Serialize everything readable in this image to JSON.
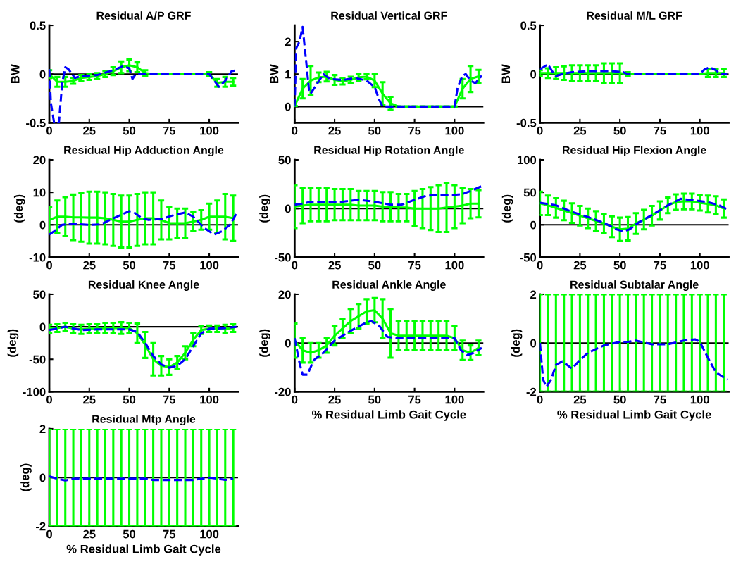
{
  "chart_data": [
    {
      "type": "line",
      "title": "Residual A/P GRF",
      "ylabel": "BW",
      "xlim": [
        0,
        118
      ],
      "xticks": [
        0,
        25,
        50,
        75,
        100
      ],
      "ylim": [
        -0.5,
        0.5
      ],
      "yticks": [
        -0.5,
        0,
        0.5
      ],
      "grid": false,
      "x": [
        0,
        5,
        10,
        15,
        20,
        25,
        30,
        35,
        40,
        45,
        50,
        55,
        60,
        65,
        70,
        75,
        80,
        85,
        90,
        95,
        100,
        105,
        110,
        115
      ],
      "ref_lines": [
        {
          "axis": "y",
          "value": 0,
          "color": "#000000"
        }
      ],
      "series": [
        {
          "color": "#00ff00",
          "line_style": "solid",
          "values": [
            0.0,
            -0.08,
            -0.08,
            -0.07,
            -0.04,
            -0.03,
            -0.02,
            0.0,
            0.03,
            0.07,
            0.09,
            0.07,
            0.01,
            0,
            0,
            0,
            0,
            0,
            0,
            0,
            0,
            -0.09,
            -0.08,
            -0.08
          ],
          "errors": [
            0.04,
            0.05,
            0.05,
            0.03,
            0.03,
            0.03,
            0.03,
            0.03,
            0.04,
            0.06,
            0.06,
            0.05,
            0.03,
            0,
            0,
            0,
            0,
            0,
            0,
            0,
            0.02,
            0.04,
            0.05,
            0.04
          ]
        },
        {
          "color": "#0000ff",
          "line_style": "dashed",
          "x": [
            0,
            1,
            3,
            6,
            8,
            10,
            12,
            16,
            20,
            30,
            40,
            46,
            50,
            52,
            54,
            60,
            100,
            106,
            110,
            114,
            117
          ],
          "values": [
            0.05,
            -0.3,
            -0.5,
            -0.5,
            -0.1,
            0.07,
            0.05,
            -0.04,
            -0.02,
            -0.01,
            0.04,
            0.08,
            0.06,
            -0.05,
            0.0,
            0.0,
            0.0,
            -0.13,
            -0.07,
            0.03,
            0.04
          ]
        }
      ]
    },
    {
      "type": "line",
      "title": "Residual Vertical GRF",
      "ylabel": "BW",
      "xlim": [
        0,
        118
      ],
      "xticks": [
        0,
        25,
        50,
        75,
        100
      ],
      "ylim": [
        -0.5,
        2.5
      ],
      "yticks": [
        0,
        1,
        2
      ],
      "grid": false,
      "x": [
        0,
        5,
        10,
        15,
        20,
        25,
        30,
        35,
        40,
        45,
        50,
        55,
        60,
        65,
        70,
        75,
        80,
        85,
        90,
        95,
        100,
        105,
        110,
        115
      ],
      "ref_lines": [
        {
          "axis": "y",
          "value": 0,
          "color": "#000000"
        }
      ],
      "series": [
        {
          "color": "#00ff00",
          "line_style": "solid",
          "values": [
            0.02,
            0.55,
            0.8,
            0.9,
            0.92,
            0.82,
            0.78,
            0.82,
            0.9,
            0.92,
            0.8,
            0.4,
            0.1,
            0,
            0,
            0,
            0,
            0,
            0,
            0,
            0,
            0.55,
            0.85,
            0.93
          ],
          "errors": [
            0,
            0.3,
            0.45,
            0.15,
            0.15,
            0.15,
            0.1,
            0.1,
            0.1,
            0.08,
            0.2,
            0.35,
            0.2,
            0,
            0,
            0,
            0,
            0,
            0,
            0,
            0,
            0.3,
            0.4,
            0.2
          ]
        },
        {
          "color": "#0000ff",
          "line_style": "dashed",
          "x": [
            0,
            1,
            3,
            5,
            7,
            9,
            10,
            14,
            18,
            22,
            30,
            38,
            45,
            50,
            53,
            55,
            100,
            102,
            105,
            107,
            110,
            113,
            117
          ],
          "values": [
            0,
            1.8,
            2.0,
            2.45,
            1.5,
            0.5,
            0.4,
            0.7,
            1.0,
            0.85,
            0.82,
            0.88,
            0.8,
            0.6,
            0.2,
            0,
            0,
            0.6,
            0.95,
            1.0,
            0.8,
            0.72,
            0.95
          ]
        }
      ]
    },
    {
      "type": "line",
      "title": "Residual M/L GRF",
      "ylabel": "BW",
      "xlim": [
        0,
        118
      ],
      "xticks": [
        0,
        25,
        50,
        75,
        100
      ],
      "ylim": [
        -0.5,
        0.5
      ],
      "yticks": [
        -0.5,
        0,
        0.5
      ],
      "grid": false,
      "x": [
        0,
        5,
        10,
        15,
        20,
        25,
        30,
        35,
        40,
        45,
        50,
        55,
        60,
        65,
        70,
        75,
        80,
        85,
        90,
        95,
        100,
        105,
        110,
        115
      ],
      "ref_lines": [
        {
          "axis": "y",
          "value": 0,
          "color": "#000000"
        }
      ],
      "series": [
        {
          "color": "#00ff00",
          "line_style": "solid",
          "values": [
            0.01,
            0.01,
            0.01,
            0.01,
            0.01,
            0.01,
            0.01,
            0.01,
            0.01,
            0.01,
            0.01,
            0.0,
            0,
            0,
            0,
            0,
            0,
            0,
            0,
            0,
            0,
            0.01,
            0.01,
            0.01
          ],
          "errors": [
            0.03,
            0.05,
            0.06,
            0.07,
            0.08,
            0.08,
            0.08,
            0.08,
            0.1,
            0.1,
            0.1,
            0.02,
            0,
            0,
            0,
            0,
            0,
            0,
            0,
            0,
            0,
            0.04,
            0.04,
            0.04
          ]
        },
        {
          "color": "#0000ff",
          "line_style": "dashed",
          "x": [
            0,
            5,
            8,
            10,
            14,
            20,
            30,
            45,
            52,
            55,
            100,
            103,
            106,
            110,
            113,
            117
          ],
          "values": [
            0.05,
            0.1,
            0.02,
            -0.02,
            0.0,
            0.02,
            0.03,
            0.03,
            0.02,
            0.0,
            0,
            0.05,
            0.07,
            0.04,
            0.0,
            0.0
          ]
        }
      ]
    },
    {
      "type": "line",
      "title": "Residual Hip Adduction Angle",
      "ylabel": "(deg)",
      "xlim": [
        0,
        118
      ],
      "xticks": [
        0,
        25,
        50,
        75,
        100
      ],
      "ylim": [
        -10,
        20
      ],
      "yticks": [
        -10,
        0,
        10,
        20
      ],
      "grid": false,
      "x": [
        0,
        5,
        10,
        15,
        20,
        25,
        30,
        35,
        40,
        45,
        50,
        55,
        60,
        65,
        70,
        75,
        80,
        85,
        90,
        95,
        100,
        105,
        110,
        115
      ],
      "ref_lines": [
        {
          "axis": "y",
          "value": 0,
          "color": "#000000"
        }
      ],
      "series": [
        {
          "color": "#00ff00",
          "line_style": "solid",
          "values": [
            1.5,
            2.5,
            2.5,
            2.3,
            2.3,
            2.2,
            2.2,
            2,
            1.5,
            1,
            1,
            1.5,
            2,
            2,
            1.5,
            0.5,
            0.5,
            0.5,
            1,
            1.5,
            2.5,
            2.5,
            2.5,
            2
          ],
          "errors": [
            4,
            5,
            6,
            7,
            7.5,
            8,
            8,
            8,
            8,
            8,
            8,
            8,
            8,
            8,
            6,
            5,
            4.5,
            4.5,
            3,
            3,
            4,
            5,
            7,
            7
          ]
        },
        {
          "color": "#0000ff",
          "line_style": "dashed",
          "x": [
            0,
            3,
            8,
            15,
            25,
            32,
            40,
            50,
            53,
            58,
            62,
            70,
            78,
            85,
            90,
            97,
            103,
            108,
            113,
            117
          ],
          "values": [
            -3,
            -2,
            0,
            0.3,
            0,
            0.1,
            2,
            4.2,
            3.8,
            2,
            1.5,
            1.8,
            3,
            3.8,
            2.5,
            -1,
            -3,
            -2,
            0,
            3.5
          ]
        }
      ]
    },
    {
      "type": "line",
      "title": "Residual Hip Rotation Angle",
      "ylabel": "(deg)",
      "xlim": [
        0,
        118
      ],
      "xticks": [
        0,
        25,
        50,
        75,
        100
      ],
      "ylim": [
        -50,
        50
      ],
      "yticks": [
        -50,
        0,
        50
      ],
      "grid": false,
      "x": [
        0,
        5,
        10,
        15,
        20,
        25,
        30,
        35,
        40,
        45,
        50,
        55,
        60,
        65,
        70,
        75,
        80,
        85,
        90,
        95,
        100,
        105,
        110,
        115
      ],
      "ref_lines": [
        {
          "axis": "y",
          "value": 0,
          "color": "#000000"
        }
      ],
      "series": [
        {
          "color": "#00ff00",
          "line_style": "solid",
          "values": [
            2,
            3,
            4,
            4,
            4,
            4,
            4,
            4,
            3,
            3,
            3,
            2,
            2,
            1,
            1,
            0,
            0,
            0,
            0,
            1,
            2,
            3,
            5,
            5
          ],
          "errors": [
            22,
            18,
            17,
            17,
            17,
            16,
            16,
            16,
            15,
            15,
            15,
            15,
            15,
            14,
            14,
            18,
            20,
            22,
            24,
            25,
            22,
            18,
            15,
            14
          ]
        },
        {
          "color": "#0000ff",
          "line_style": "dashed",
          "x": [
            0,
            5,
            10,
            20,
            30,
            40,
            50,
            60,
            67,
            75,
            82,
            90,
            100,
            105,
            110,
            117
          ],
          "values": [
            4,
            5,
            7,
            7,
            7,
            9,
            7,
            4,
            4,
            9,
            13,
            14,
            14,
            15,
            18,
            23
          ]
        }
      ]
    },
    {
      "type": "line",
      "title": "Residual Hip Flexion Angle",
      "ylabel": "(deg)",
      "xlim": [
        0,
        118
      ],
      "xticks": [
        0,
        25,
        50,
        75,
        100
      ],
      "ylim": [
        -50,
        100
      ],
      "yticks": [
        -50,
        0,
        50,
        100
      ],
      "grid": false,
      "x": [
        0,
        5,
        10,
        15,
        20,
        25,
        30,
        35,
        40,
        45,
        50,
        55,
        60,
        65,
        70,
        75,
        80,
        85,
        90,
        95,
        100,
        105,
        110,
        115
      ],
      "ref_lines": [
        {
          "axis": "y",
          "value": 0,
          "color": "#000000"
        }
      ],
      "series": [
        {
          "color": "#00ff00",
          "line_style": "solid",
          "values": [
            33,
            30,
            26,
            22,
            18,
            14,
            10,
            6,
            2,
            -3,
            -7,
            -6,
            2,
            8,
            14,
            22,
            30,
            35,
            36,
            36,
            34,
            32,
            30,
            25
          ],
          "errors": [
            18,
            15,
            15,
            15,
            15,
            15,
            15,
            15,
            15,
            16,
            18,
            18,
            16,
            15,
            15,
            14,
            12,
            12,
            12,
            12,
            12,
            13,
            14,
            14
          ]
        },
        {
          "color": "#0000ff",
          "line_style": "dashed",
          "x": [
            0,
            10,
            20,
            30,
            40,
            48,
            52,
            56,
            62,
            70,
            80,
            88,
            95,
            105,
            112,
            117
          ],
          "values": [
            34,
            30,
            20,
            12,
            3,
            -7,
            -10,
            -7,
            4,
            15,
            30,
            40,
            38,
            35,
            30,
            24
          ]
        }
      ]
    },
    {
      "type": "line",
      "title": "Residual Knee Angle",
      "ylabel": "(deg)",
      "xlim": [
        0,
        118
      ],
      "xticks": [
        0,
        25,
        50,
        75,
        100
      ],
      "ylim": [
        -100,
        50
      ],
      "yticks": [
        -100,
        -50,
        0,
        50
      ],
      "grid": false,
      "x": [
        0,
        5,
        10,
        15,
        20,
        25,
        30,
        35,
        40,
        45,
        50,
        55,
        60,
        65,
        70,
        75,
        80,
        85,
        90,
        95,
        100,
        105,
        110,
        115
      ],
      "ref_lines": [
        {
          "axis": "y",
          "value": 0,
          "color": "#000000"
        }
      ],
      "series": [
        {
          "color": "#00ff00",
          "line_style": "solid",
          "values": [
            -3,
            -2,
            0,
            -3,
            -4,
            -3,
            -3,
            -2,
            -2,
            -2,
            -2,
            -10,
            -28,
            -50,
            -60,
            -62,
            -55,
            -40,
            -20,
            -5,
            -3,
            -3,
            -3,
            -2
          ],
          "errors": [
            6,
            6,
            6,
            7,
            7,
            7,
            7,
            8,
            8,
            9,
            8,
            15,
            20,
            25,
            15,
            12,
            10,
            10,
            10,
            6,
            5,
            5,
            6,
            6
          ]
        },
        {
          "color": "#0000ff",
          "line_style": "dashed",
          "x": [
            0,
            10,
            20,
            30,
            50,
            55,
            60,
            65,
            70,
            75,
            80,
            85,
            90,
            95,
            100,
            110,
            117
          ],
          "values": [
            -5,
            0,
            -5,
            -4,
            -4,
            -8,
            -25,
            -45,
            -58,
            -63,
            -60,
            -50,
            -30,
            -10,
            -3,
            -2,
            0
          ]
        }
      ]
    },
    {
      "type": "line",
      "title": "Residual Ankle Angle",
      "xlabel": "% Residual Limb Gait Cycle",
      "ylabel": "(deg)",
      "xlim": [
        0,
        118
      ],
      "xticks": [
        0,
        25,
        50,
        75,
        100
      ],
      "ylim": [
        -20,
        20
      ],
      "yticks": [
        -20,
        0,
        20
      ],
      "grid": false,
      "x": [
        0,
        5,
        10,
        15,
        20,
        25,
        30,
        35,
        40,
        45,
        50,
        55,
        60,
        65,
        70,
        75,
        80,
        85,
        90,
        95,
        100,
        105,
        110,
        115
      ],
      "ref_lines": [
        {
          "axis": "y",
          "value": 0,
          "color": "#000000"
        }
      ],
      "series": [
        {
          "color": "#00ff00",
          "line_style": "solid",
          "values": [
            1,
            -3,
            -4,
            -3,
            -1,
            3,
            6,
            9,
            11,
            13,
            13.5,
            10,
            4,
            3,
            3,
            3,
            3,
            3,
            3,
            3,
            2,
            -3,
            -4,
            -2
          ],
          "errors": [
            7,
            5,
            4,
            3,
            3,
            4,
            4,
            5,
            5,
            5,
            5,
            8,
            10,
            6,
            6,
            6,
            6,
            6,
            6,
            6,
            5,
            4,
            3,
            3
          ]
        },
        {
          "color": "#0000ff",
          "line_style": "dashed",
          "x": [
            0,
            3,
            5,
            8,
            12,
            18,
            25,
            35,
            45,
            48,
            53,
            58,
            65,
            100,
            104,
            108,
            112,
            117
          ],
          "values": [
            2,
            -8,
            -13,
            -13,
            -7,
            -4,
            1,
            5,
            8.5,
            9,
            7,
            2.5,
            2,
            2,
            -3,
            -5,
            -4,
            -2
          ]
        }
      ]
    },
    {
      "type": "line",
      "title": "Residual Subtalar Angle",
      "xlabel": "% Residual Limb Gait Cycle",
      "ylabel": "(deg)",
      "xlim": [
        0,
        118
      ],
      "xticks": [
        0,
        25,
        50,
        75,
        100
      ],
      "ylim": [
        -2,
        2
      ],
      "yticks": [
        -2,
        0,
        2
      ],
      "grid": false,
      "x": [
        0,
        5,
        10,
        15,
        20,
        25,
        30,
        35,
        40,
        45,
        50,
        55,
        60,
        65,
        70,
        75,
        80,
        85,
        90,
        95,
        100,
        105,
        110,
        115
      ],
      "ref_lines": [
        {
          "axis": "y",
          "value": 0,
          "color": "#000000"
        }
      ],
      "series": [
        {
          "color": "#00ff00",
          "line_style": "solid",
          "values": [
            -2,
            -2,
            -2,
            -2,
            -2,
            -2,
            -2,
            -2,
            -2,
            -2,
            -2,
            -2,
            -2,
            -2,
            -2,
            -2,
            -2,
            -2,
            -2,
            -2,
            -2,
            -2,
            -2,
            -2
          ],
          "errors": [
            [
              -2,
              2
            ],
            [
              -2,
              2
            ],
            [
              -2,
              2
            ],
            [
              -2,
              2
            ],
            [
              -2,
              2
            ],
            [
              -2,
              2
            ],
            [
              -2,
              2
            ],
            [
              -2,
              2
            ],
            [
              -2,
              2
            ],
            [
              -2,
              2
            ],
            [
              -2,
              2
            ],
            [
              -2,
              2
            ],
            [
              -2,
              2
            ],
            [
              -2,
              2
            ],
            [
              -2,
              2
            ],
            [
              -2,
              2
            ],
            [
              -2,
              2
            ],
            [
              -2,
              2
            ],
            [
              -2,
              2
            ],
            [
              -2,
              2
            ],
            [
              -2,
              2
            ],
            [
              -2,
              2
            ],
            [
              -2,
              2
            ],
            [
              -2,
              2
            ]
          ]
        },
        {
          "color": "#0000ff",
          "line_style": "dashed",
          "x": [
            0,
            2,
            4,
            7,
            10,
            14,
            17,
            20,
            25,
            30,
            40,
            50,
            55,
            60,
            70,
            80,
            90,
            97,
            100,
            105,
            110,
            117
          ],
          "values": [
            0,
            -1.5,
            -1.8,
            -1.5,
            -0.9,
            -0.75,
            -0.9,
            -1.05,
            -0.7,
            -0.4,
            -0.1,
            0.05,
            0.05,
            0.1,
            -0.05,
            -0.05,
            0.1,
            0.15,
            0.05,
            -0.6,
            -1.2,
            -1.5
          ]
        }
      ]
    },
    {
      "type": "line",
      "title": "Residual Mtp Angle",
      "xlabel": "% Residual Limb Gait Cycle",
      "ylabel": "(deg)",
      "xlim": [
        0,
        118
      ],
      "xticks": [
        0,
        25,
        50,
        75,
        100
      ],
      "ylim": [
        -2,
        2
      ],
      "yticks": [
        -2,
        0,
        2
      ],
      "grid": false,
      "x": [
        0,
        5,
        10,
        15,
        20,
        25,
        30,
        35,
        40,
        45,
        50,
        55,
        60,
        65,
        70,
        75,
        80,
        85,
        90,
        95,
        100,
        105,
        110,
        115
      ],
      "ref_lines": [
        {
          "axis": "y",
          "value": 0,
          "color": "#000000"
        }
      ],
      "series": [
        {
          "color": "#00ff00",
          "line_style": "solid",
          "values": [
            -2,
            -2,
            -2,
            -2,
            -2,
            -2,
            -2,
            -2,
            -2,
            -2,
            -2,
            -2,
            -2,
            -2,
            -2,
            -2,
            -2,
            -2,
            -2,
            -2,
            -2,
            -2,
            -2,
            -2
          ],
          "errors": [
            [
              -2,
              2
            ],
            [
              -2,
              2
            ],
            [
              -2,
              2
            ],
            [
              -2,
              2
            ],
            [
              -2,
              2
            ],
            [
              -2,
              2
            ],
            [
              -2,
              2
            ],
            [
              -2,
              2
            ],
            [
              -2,
              2
            ],
            [
              -2,
              2
            ],
            [
              -2,
              2
            ],
            [
              -2,
              2
            ],
            [
              -2,
              2
            ],
            [
              -2,
              2
            ],
            [
              -2,
              2
            ],
            [
              -2,
              2
            ],
            [
              -2,
              2
            ],
            [
              -2,
              2
            ],
            [
              -2,
              2
            ],
            [
              -2,
              2
            ],
            [
              -2,
              2
            ],
            [
              -2,
              2
            ],
            [
              -2,
              2
            ],
            [
              -2,
              2
            ]
          ]
        },
        {
          "color": "#0000ff",
          "line_style": "dashed",
          "x": [
            0,
            5,
            10,
            15,
            60,
            65,
            90,
            100,
            105,
            110,
            115
          ],
          "values": [
            0.05,
            -0.05,
            -0.12,
            -0.05,
            -0.05,
            -0.1,
            -0.1,
            0,
            -0.05,
            -0.1,
            -0.05
          ]
        }
      ]
    }
  ]
}
